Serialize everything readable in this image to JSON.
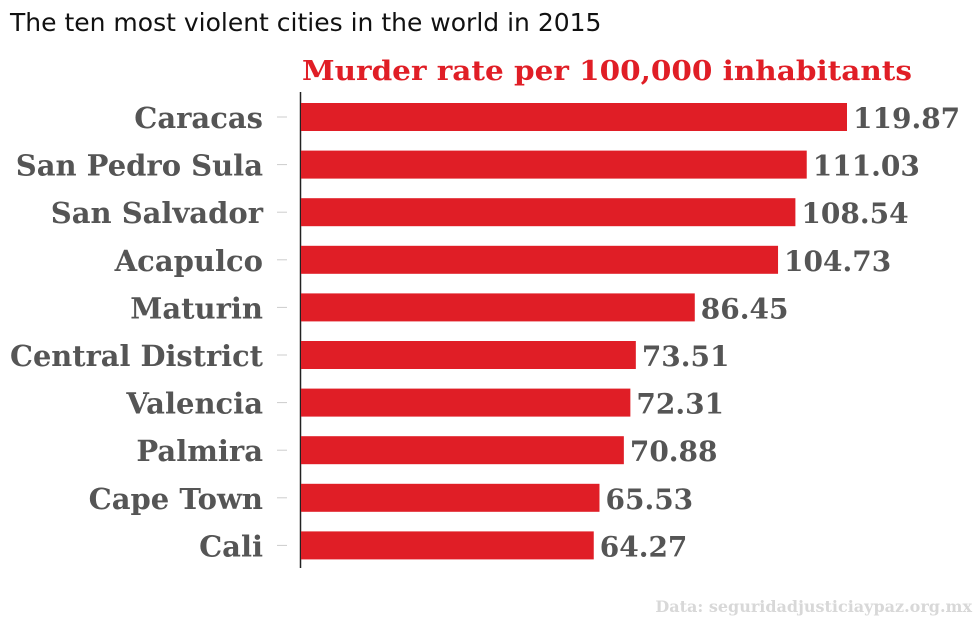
{
  "page_title": "The ten most violent cities in the world in 2015",
  "source": "Data: seguridadjusticiaypaz.org.mx",
  "colors": {
    "bar": "#e01e26",
    "subtitle": "#e01e26",
    "labels": "#555555",
    "axis": "#222222",
    "tick": "#cccccc"
  },
  "chart_data": {
    "type": "bar",
    "orientation": "horizontal",
    "title": "Murder rate per 100,000 inhabitants",
    "xlabel": "",
    "ylabel": "",
    "grid": false,
    "legend": "none",
    "xlim": [
      0,
      120
    ],
    "categories": [
      "Caracas",
      "San Pedro Sula",
      "San Salvador",
      "Acapulco",
      "Maturin",
      "Central District",
      "Valencia",
      "Palmira",
      "Cape Town",
      "Cali"
    ],
    "values": [
      119.87,
      111.03,
      108.54,
      104.73,
      86.45,
      73.51,
      72.31,
      70.88,
      65.53,
      64.27
    ],
    "value_labels": [
      "119.87",
      "111.03",
      "108.54",
      "104.73",
      "86.45",
      "73.51",
      "72.31",
      "70.88",
      "65.53",
      "64.27"
    ]
  }
}
